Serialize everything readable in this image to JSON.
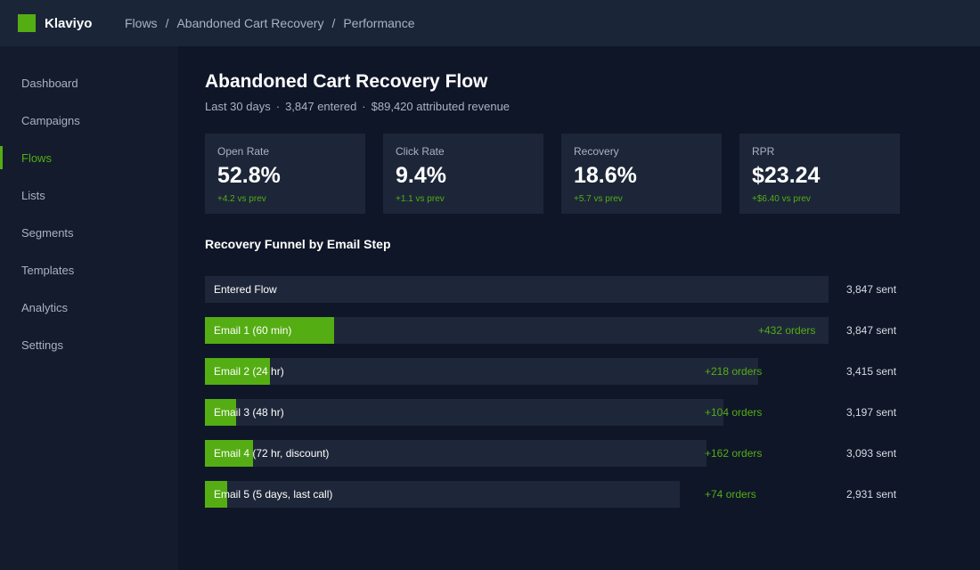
{
  "app": {
    "name": "Klaviyo"
  },
  "breadcrumb": [
    "Flows",
    "Abandoned Cart Recovery",
    "Performance"
  ],
  "sidebar": {
    "items": [
      {
        "label": "Dashboard",
        "active": false
      },
      {
        "label": "Campaigns",
        "active": false
      },
      {
        "label": "Flows",
        "active": true
      },
      {
        "label": "Lists",
        "active": false
      },
      {
        "label": "Segments",
        "active": false
      },
      {
        "label": "Templates",
        "active": false
      },
      {
        "label": "Analytics",
        "active": false
      },
      {
        "label": "Settings",
        "active": false
      }
    ]
  },
  "page": {
    "title": "Abandoned Cart Recovery Flow",
    "period": "Last 30 days",
    "entered": "3,847 entered",
    "revenue": "$89,420 attributed revenue",
    "separator": "·"
  },
  "kpis": [
    {
      "label": "Open Rate",
      "value": "52.8%",
      "delta": "+4.2 vs prev"
    },
    {
      "label": "Click Rate",
      "value": "9.4%",
      "delta": "+1.1 vs prev"
    },
    {
      "label": "Recovery",
      "value": "18.6%",
      "delta": "+5.7 vs prev"
    },
    {
      "label": "RPR",
      "value": "$23.24",
      "delta": "+$6.40 vs prev"
    }
  ],
  "funnel": {
    "title": "Recovery Funnel by Email Step",
    "max_sent": 3847,
    "steps": [
      {
        "label": "Entered Flow",
        "sent": 3847,
        "sent_label": "3,847 sent",
        "orders": null,
        "orders_label": ""
      },
      {
        "label": "Email 1 (60 min)",
        "sent": 3847,
        "sent_label": "3,847 sent",
        "orders": 432,
        "orders_label": "+432 orders"
      },
      {
        "label": "Email 2 (24 hr)",
        "sent": 3415,
        "sent_label": "3,415 sent",
        "orders": 218,
        "orders_label": "+218 orders"
      },
      {
        "label": "Email 3 (48 hr)",
        "sent": 3197,
        "sent_label": "3,197 sent",
        "orders": 104,
        "orders_label": "+104 orders"
      },
      {
        "label": "Email 4 (72 hr, discount)",
        "sent": 3093,
        "sent_label": "3,093 sent",
        "orders": 162,
        "orders_label": "+162 orders"
      },
      {
        "label": "Email 5 (5 days, last call)",
        "sent": 2931,
        "sent_label": "2,931 sent",
        "orders": 74,
        "orders_label": "+74 orders"
      }
    ]
  },
  "colors": {
    "accent": "#55ad14",
    "background": "#0f1628",
    "topbar": "#1b2538",
    "card": "#1c2638"
  }
}
